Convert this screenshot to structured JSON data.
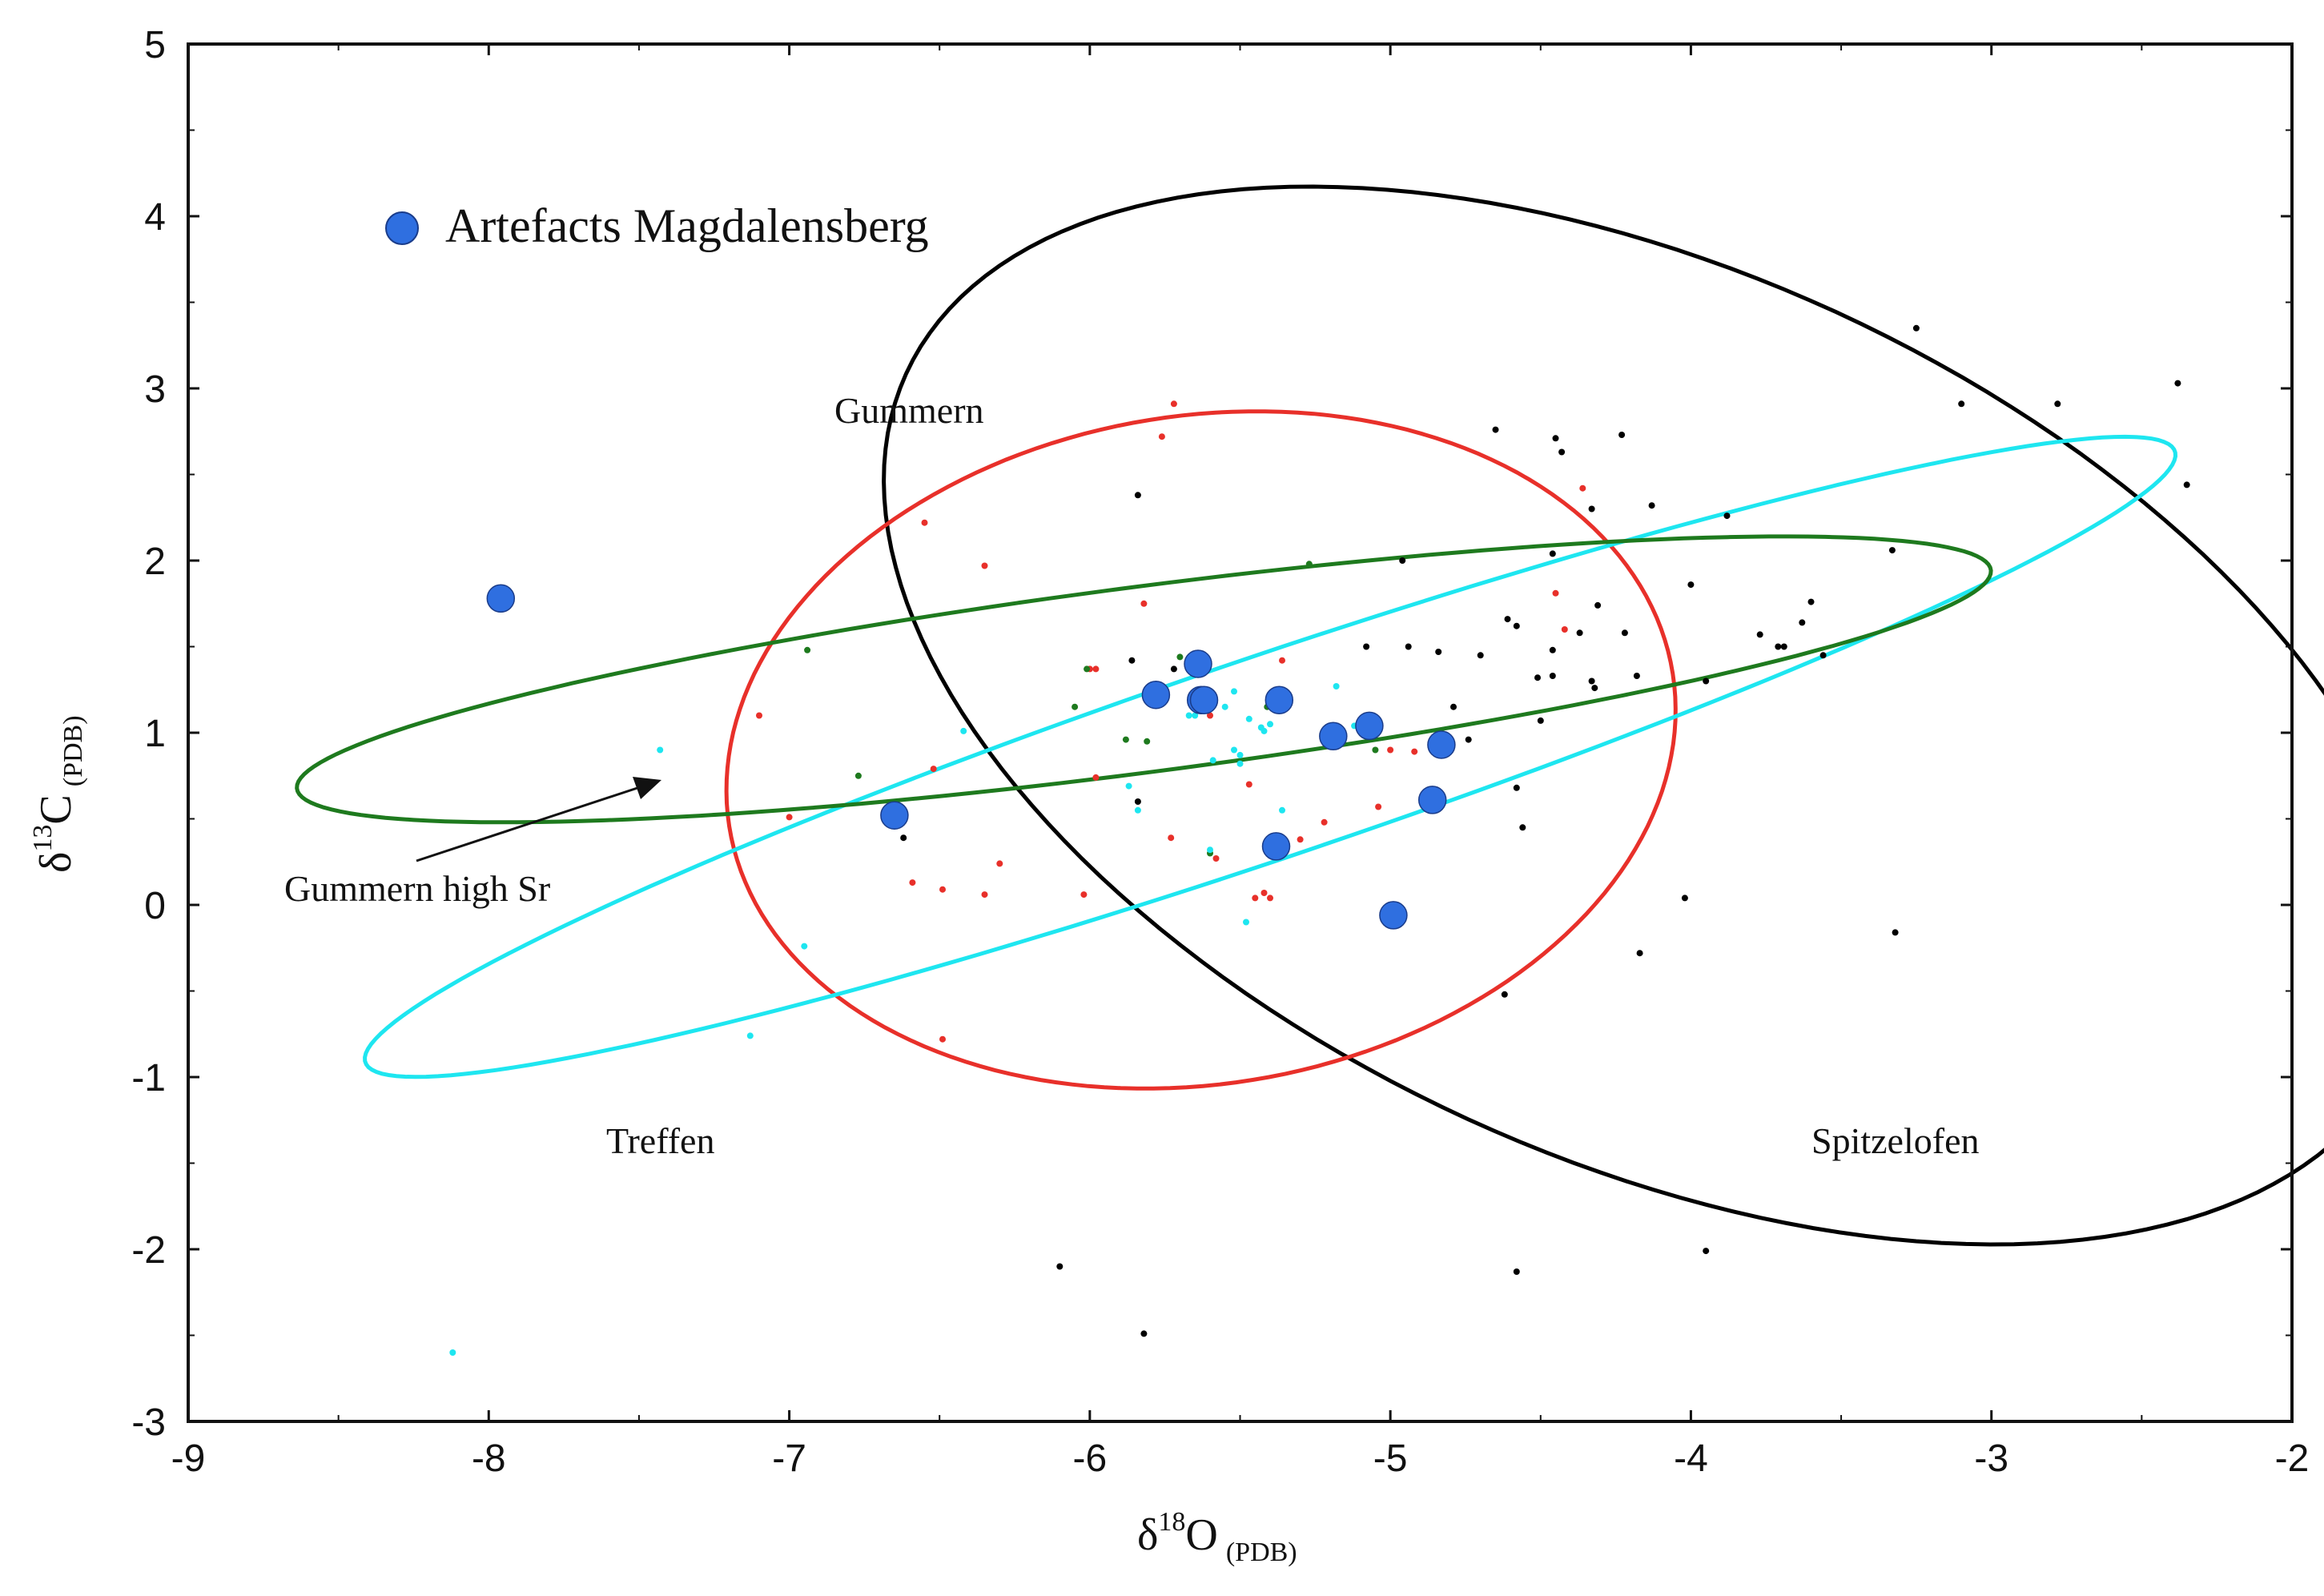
{
  "chart_data": {
    "type": "scatter",
    "title": "",
    "xlabel": {
      "main": "δ",
      "sup": "18",
      "sym": "O",
      "sub": "(PDB)"
    },
    "ylabel": {
      "main": "δ",
      "sup": "13",
      "sym": "C",
      "sub": "(PDB)"
    },
    "xlim": [
      -9,
      -2
    ],
    "ylim": [
      -3,
      5
    ],
    "x_ticks": [
      -9,
      -8,
      -7,
      -6,
      -5,
      -4,
      -3,
      -2
    ],
    "y_ticks": [
      -3,
      -2,
      -1,
      0,
      1,
      2,
      3,
      4,
      5
    ],
    "x_tick_labels": [
      "-9",
      "-8",
      "-7",
      "-6",
      "-5",
      "-4",
      "-3",
      "-2"
    ],
    "y_tick_labels": [
      "-3",
      "-2",
      "-1",
      "0",
      "1",
      "2",
      "3",
      "4",
      "5"
    ],
    "grid": false,
    "legend": {
      "position": "top-left",
      "entries": [
        {
          "label": "Artefacts Magdalensberg",
          "color": "#2f6fe0"
        }
      ]
    },
    "annotations": {
      "gummern": "Gummern",
      "treffen": "Treffen",
      "spitzelofen": "Spitzelofen",
      "gummern_high_sr": "Gummern high Sr"
    },
    "ellipses": [
      {
        "name": "Spitzelofen",
        "color": "#000000",
        "center": [
          -4.13,
          1.1
        ],
        "semi_a": 2.05,
        "semi_b": 3.43,
        "rotation_deg": 33.7
      },
      {
        "name": "Gummern",
        "color": "#e8302a",
        "center": [
          -5.63,
          0.9
        ],
        "semi_a": 1.55,
        "semi_b": 1.99,
        "rotation_deg": -14
      },
      {
        "name": "Treffen",
        "color": "#1ee6f0",
        "center": [
          -5.4,
          0.86
        ],
        "semi_a": 3.5,
        "semi_b": 0.53,
        "rotation_deg": 31
      },
      {
        "name": "Gummern high Sr",
        "color": "#1e7a1e",
        "center": [
          -5.82,
          1.31
        ],
        "semi_a": 2.89,
        "semi_b": 0.53,
        "rotation_deg": 13
      }
    ],
    "series": [
      {
        "name": "Spitzelofen",
        "color": "#000000",
        "marker_size": 4,
        "x": [
          -3.25,
          -3.1,
          -2.78,
          -2.38,
          -2.35,
          -3.33,
          -4.65,
          -4.45,
          -4.43,
          -4.23,
          -4.33,
          -4.37,
          -4.13,
          -3.88,
          -4.0,
          -3.95,
          -3.6,
          -3.63,
          -3.69,
          -3.56,
          -3.77,
          -3.71,
          -4.22,
          -4.31,
          -4.32,
          -4.18,
          -4.46,
          -4.61,
          -4.58,
          -4.7,
          -4.5,
          -4.46,
          -4.46,
          -4.96,
          -4.94,
          -5.08,
          -4.84,
          -4.79,
          -4.74,
          -4.58,
          -4.56,
          -4.51,
          -5.86,
          -5.84,
          -5.84,
          -5.72,
          -6.62,
          -4.02,
          -4.17,
          -3.32,
          -4.62,
          -6.1,
          -5.82,
          -4.58,
          -3.95,
          -4.33
        ],
        "y": [
          3.35,
          2.91,
          2.91,
          3.03,
          2.44,
          2.06,
          2.76,
          2.71,
          2.63,
          2.73,
          2.3,
          1.58,
          2.32,
          2.26,
          1.86,
          1.3,
          1.76,
          1.64,
          1.5,
          1.45,
          1.57,
          1.5,
          1.58,
          1.74,
          1.26,
          1.33,
          2.04,
          1.66,
          1.62,
          1.45,
          1.07,
          1.48,
          1.33,
          2.0,
          1.5,
          1.5,
          1.47,
          1.15,
          0.96,
          0.68,
          0.45,
          1.32,
          1.42,
          0.6,
          2.38,
          1.37,
          0.39,
          0.04,
          -0.28,
          -0.16,
          -0.52,
          -2.1,
          -2.49,
          -2.13,
          -2.01,
          1.3
        ]
      },
      {
        "name": "Gummern",
        "color": "#e8302a",
        "marker_size": 4,
        "x": [
          -6.55,
          -6.35,
          -7.1,
          -7.0,
          -6.59,
          -6.49,
          -6.35,
          -6.3,
          -6.52,
          -5.72,
          -5.76,
          -5.82,
          -5.98,
          -6.0,
          -5.98,
          -6.02,
          -5.73,
          -5.58,
          -5.42,
          -5.4,
          -5.3,
          -5.22,
          -5.36,
          -5.47,
          -5.45,
          -5.4,
          -5.04,
          -5.05,
          -5.0,
          -4.45,
          -4.42,
          -4.36,
          -4.92,
          -5.6,
          -6.49
        ],
        "y": [
          2.22,
          1.97,
          1.1,
          0.51,
          0.13,
          0.09,
          0.06,
          0.24,
          0.79,
          2.91,
          2.72,
          1.75,
          1.37,
          1.37,
          0.74,
          0.06,
          0.39,
          0.27,
          0.07,
          0.04,
          0.38,
          0.48,
          1.42,
          0.7,
          0.04,
          0.34,
          0.57,
          1.06,
          0.9,
          1.81,
          1.6,
          2.42,
          0.89,
          1.1,
          -0.78
        ]
      },
      {
        "name": "Gummern high Sr",
        "color": "#1e7a1e",
        "marker_size": 4,
        "x": [
          -6.94,
          -6.77,
          -6.05,
          -6.01,
          -5.88,
          -5.81,
          -5.7,
          -5.65,
          -5.62,
          -5.27,
          -5.41,
          -5.6,
          -5.05
        ],
        "y": [
          1.48,
          0.75,
          1.15,
          1.37,
          0.96,
          0.95,
          1.44,
          1.36,
          1.17,
          1.98,
          1.15,
          0.3,
          0.9
        ]
      },
      {
        "name": "Treffen",
        "color": "#1ee6f0",
        "marker_size": 4,
        "x": [
          -8.12,
          -7.13,
          -6.95,
          -7.43,
          -6.42,
          -5.87,
          -5.84,
          -5.67,
          -5.59,
          -5.5,
          -5.5,
          -5.47,
          -5.43,
          -5.42,
          -5.4,
          -5.36,
          -5.52,
          -5.52,
          -5.18,
          -5.12,
          -5.48,
          -5.2,
          -5.65,
          -5.55,
          -5.36,
          -5.6
        ],
        "y": [
          -2.6,
          -0.76,
          -0.24,
          0.9,
          1.01,
          0.69,
          0.55,
          1.1,
          0.84,
          0.82,
          0.87,
          1.08,
          1.03,
          1.01,
          1.05,
          1.14,
          1.24,
          0.9,
          1.27,
          1.04,
          -0.1,
          0.95,
          1.1,
          1.15,
          0.55,
          0.32
        ]
      },
      {
        "name": "Artefacts Magdalensberg",
        "color": "#2f6fe0",
        "marker_size": 17,
        "x": [
          -7.96,
          -6.65,
          -5.78,
          -5.64,
          -5.63,
          -5.62,
          -5.37,
          -5.38,
          -5.19,
          -5.07,
          -4.83,
          -4.86,
          -4.99
        ],
        "y": [
          1.78,
          0.52,
          1.22,
          1.4,
          1.19,
          1.19,
          1.19,
          0.34,
          0.98,
          1.04,
          0.93,
          0.61,
          -0.06
        ]
      }
    ]
  }
}
